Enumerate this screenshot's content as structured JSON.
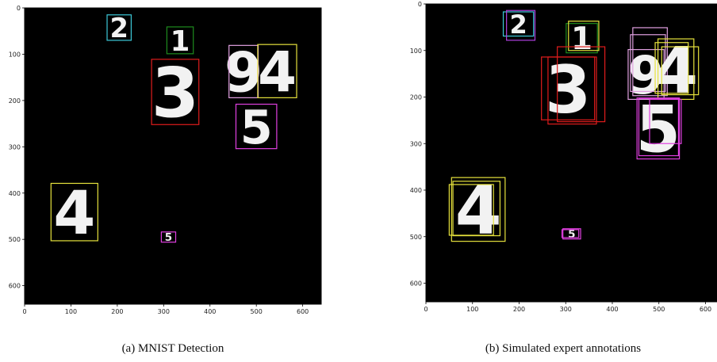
{
  "figure": {
    "panels": [
      {
        "caption": "(a) MNIST Detection",
        "xlim": [
          0,
          640
        ],
        "ylim": [
          0,
          640
        ],
        "xticks": [
          0,
          100,
          200,
          300,
          400,
          500,
          600
        ],
        "yticks": [
          0,
          100,
          200,
          300,
          400,
          500,
          600
        ],
        "objects": [
          {
            "digit": "2",
            "boxes": [
              {
                "x": [
                  178,
                  230
                ],
                "y": [
                  15,
                  70
                ],
                "color": "#3cc8d8"
              }
            ]
          },
          {
            "digit": "1",
            "boxes": [
              {
                "x": [
                  307,
                  364
                ],
                "y": [
                  41,
                  99
                ],
                "color": "#1e8c1e"
              }
            ]
          },
          {
            "digit": "3",
            "boxes": [
              {
                "x": [
                  274,
                  376
                ],
                "y": [
                  111,
                  252
                ],
                "color": "#e01c1c"
              }
            ]
          },
          {
            "digit": "9",
            "boxes": [
              {
                "x": [
                  441,
                  504
                ],
                "y": [
                  81,
                  194
                ],
                "color": "#e0a0e0"
              }
            ]
          },
          {
            "digit": "4",
            "boxes": [
              {
                "x": [
                  503,
                  587
                ],
                "y": [
                  79,
                  194
                ],
                "color": "#e6e23c"
              }
            ]
          },
          {
            "digit": "5",
            "boxes": [
              {
                "x": [
                  456,
                  544
                ],
                "y": [
                  208,
                  304
                ],
                "color": "#e040e0"
              }
            ]
          },
          {
            "digit": "4",
            "boxes": [
              {
                "x": [
                  57,
                  158
                ],
                "y": [
                  379,
                  503
                ],
                "color": "#e6e23c"
              }
            ]
          },
          {
            "digit": "5",
            "boxes": [
              {
                "x": [
                  295,
                  326
                ],
                "y": [
                  484,
                  506
                ],
                "color": "#e040e0"
              }
            ]
          }
        ]
      },
      {
        "caption": "(b) Simulated expert annotations",
        "xlim": [
          0,
          640
        ],
        "ylim": [
          0,
          640
        ],
        "xticks": [
          0,
          100,
          200,
          300,
          400,
          500,
          600
        ],
        "yticks": [
          0,
          100,
          200,
          300,
          400,
          500,
          600
        ],
        "objects": [
          {
            "digit": "2",
            "boxes": [
              {
                "x": [
                  166,
                  231
                ],
                "y": [
                  17,
                  69
                ],
                "color": "#3cc8d8"
              },
              {
                "x": [
                  173,
                  234
                ],
                "y": [
                  14,
                  78
                ],
                "color": "#b040e0"
              }
            ]
          },
          {
            "digit": "1",
            "boxes": [
              {
                "x": [
                  301,
                  368
                ],
                "y": [
                  42,
                  105
                ],
                "color": "#1e8c1e"
              },
              {
                "x": [
                  306,
                  371
                ],
                "y": [
                  37,
                  100
                ],
                "color": "#e6e23c"
              }
            ]
          },
          {
            "digit": "3",
            "boxes": [
              {
                "x": [
                  248,
                  362
                ],
                "y": [
                  114,
                  249
                ],
                "color": "#e01c1c"
              },
              {
                "x": [
                  262,
                  366
                ],
                "y": [
                  114,
                  258
                ],
                "color": "#e01c1c"
              },
              {
                "x": [
                  282,
                  384
                ],
                "y": [
                  92,
                  253
                ],
                "color": "#e01c1c"
              }
            ]
          },
          {
            "digit": "9",
            "boxes": [
              {
                "x": [
                  434,
                  511
                ],
                "y": [
                  98,
                  205
                ],
                "color": "#e0a0e0"
              },
              {
                "x": [
                  444,
                  518
                ],
                "y": [
                  51,
                  197
                ],
                "color": "#e0a0e0"
              },
              {
                "x": [
                  439,
                  514
                ],
                "y": [
                  66,
                  188
                ],
                "color": "#e0a0e0"
              }
            ]
          },
          {
            "digit": "4",
            "boxes": [
              {
                "x": [
                  498,
                  575
                ],
                "y": [
                  75,
                  205
                ],
                "color": "#e6e23c"
              },
              {
                "x": [
                  506,
                  585
                ],
                "y": [
                  92,
                  195
                ],
                "color": "#e6e23c"
              },
              {
                "x": [
                  492,
                  563
                ],
                "y": [
                  83,
                  192
                ],
                "color": "#e6e23c"
              }
            ]
          },
          {
            "digit": "5",
            "boxes": [
              {
                "x": [
                  453,
                  544
                ],
                "y": [
                  202,
                  333
                ],
                "color": "#e040e0"
              },
              {
                "x": [
                  480,
                  548
                ],
                "y": [
                  205,
                  300
                ],
                "color": "#e040e0"
              },
              {
                "x": [
                  457,
                  542
                ],
                "y": [
                  203,
                  326
                ],
                "color": "#e040e0"
              }
            ]
          },
          {
            "digit": "4",
            "boxes": [
              {
                "x": [
                  55,
                  170
                ],
                "y": [
                  373,
                  510
                ],
                "color": "#e6e23c"
              },
              {
                "x": [
                  50,
                  145
                ],
                "y": [
                  388,
                  497
                ],
                "color": "#e6e23c"
              },
              {
                "x": [
                  58,
                  159
                ],
                "y": [
                  381,
                  498
                ],
                "color": "#e6e23c"
              }
            ]
          },
          {
            "digit": "5",
            "boxes": [
              {
                "x": [
                  294,
                  332
                ],
                "y": [
                  483,
                  505
                ],
                "color": "#e040e0"
              },
              {
                "x": [
                  292,
                  328
                ],
                "y": [
                  485,
                  502
                ],
                "color": "#e040e0"
              }
            ]
          }
        ]
      }
    ]
  }
}
